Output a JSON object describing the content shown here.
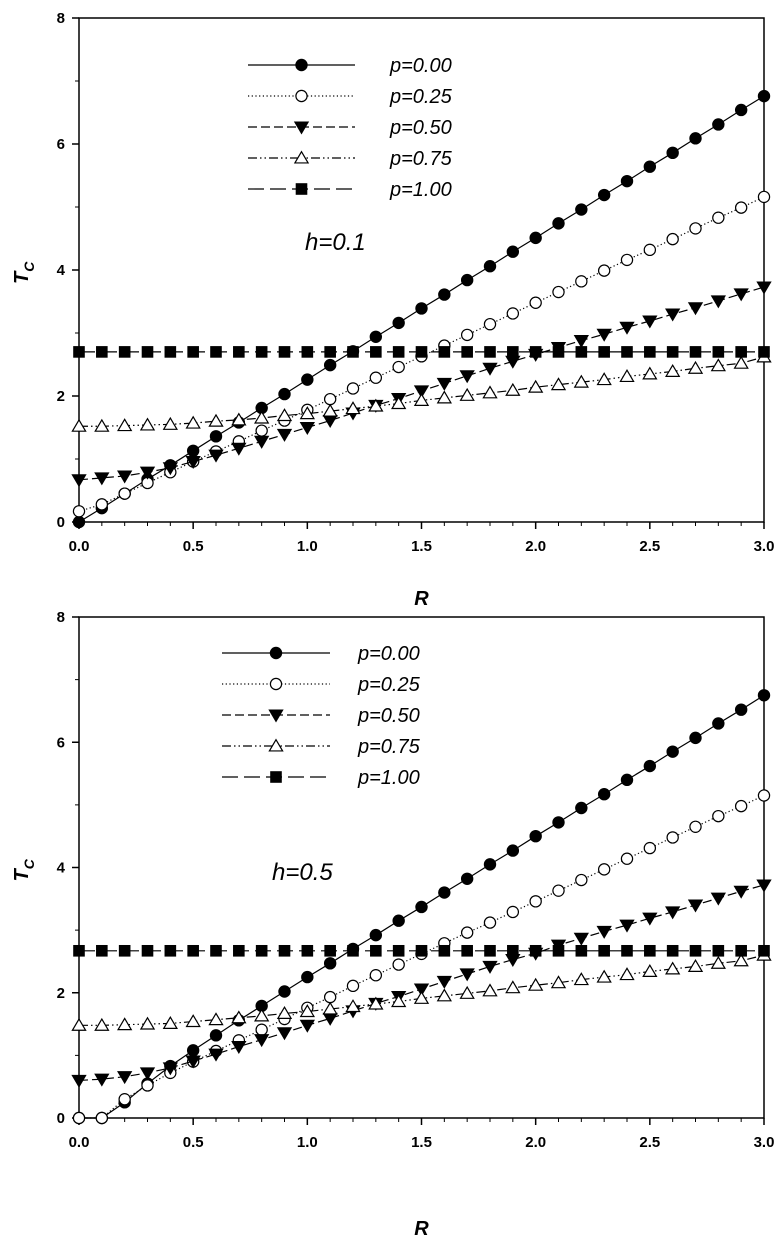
{
  "chart_data": [
    {
      "type": "line",
      "annotation": "h=0.1",
      "xlabel": "R",
      "ylabel_main": "T",
      "ylabel_sub": "C",
      "xlim": [
        0,
        3
      ],
      "ylim": [
        0,
        8
      ],
      "xticks": [
        "0.0",
        "0.5",
        "1.0",
        "1.5",
        "2.0",
        "2.5",
        "3.0"
      ],
      "yticks": [
        "0",
        "2",
        "4",
        "6",
        "8"
      ],
      "grid": false,
      "legend_position": "top-center",
      "x": [
        0.0,
        0.1,
        0.2,
        0.3,
        0.4,
        0.5,
        0.6,
        0.7,
        0.8,
        0.9,
        1.0,
        1.1,
        1.2,
        1.3,
        1.4,
        1.5,
        1.6,
        1.7,
        1.8,
        1.9,
        2.0,
        2.1,
        2.2,
        2.3,
        2.4,
        2.5,
        2.6,
        2.7,
        2.8,
        2.9,
        3.0
      ],
      "series": [
        {
          "name": "p=0.00",
          "marker": "filled-circle",
          "line": "solid",
          "values": [
            0.0,
            0.22,
            0.45,
            0.68,
            0.9,
            1.13,
            1.36,
            1.58,
            1.81,
            2.03,
            2.26,
            2.49,
            2.71,
            2.94,
            3.16,
            3.39,
            3.61,
            3.84,
            4.06,
            4.29,
            4.51,
            4.74,
            4.96,
            5.19,
            5.41,
            5.64,
            5.86,
            6.09,
            6.31,
            6.54,
            6.76
          ]
        },
        {
          "name": "p=0.25",
          "marker": "open-circle",
          "line": "dotted",
          "values": [
            0.17,
            0.28,
            0.45,
            0.62,
            0.79,
            0.96,
            1.12,
            1.28,
            1.45,
            1.61,
            1.78,
            1.95,
            2.12,
            2.29,
            2.46,
            2.63,
            2.8,
            2.97,
            3.14,
            3.31,
            3.48,
            3.65,
            3.82,
            3.99,
            4.16,
            4.32,
            4.49,
            4.66,
            4.83,
            4.99,
            5.16
          ]
        },
        {
          "name": "p=0.50",
          "marker": "filled-triangle-down",
          "line": "dashed",
          "values": [
            0.67,
            0.7,
            0.73,
            0.79,
            0.86,
            0.96,
            1.06,
            1.17,
            1.28,
            1.39,
            1.5,
            1.61,
            1.73,
            1.85,
            1.96,
            2.08,
            2.2,
            2.32,
            2.44,
            2.55,
            2.66,
            2.77,
            2.88,
            2.98,
            3.09,
            3.19,
            3.3,
            3.4,
            3.51,
            3.62,
            3.73
          ]
        },
        {
          "name": "p=0.75",
          "marker": "open-triangle-up",
          "line": "dash-dot-dot",
          "values": [
            1.52,
            1.52,
            1.53,
            1.54,
            1.55,
            1.57,
            1.6,
            1.62,
            1.65,
            1.69,
            1.72,
            1.76,
            1.8,
            1.84,
            1.88,
            1.93,
            1.97,
            2.01,
            2.05,
            2.09,
            2.14,
            2.18,
            2.22,
            2.26,
            2.31,
            2.35,
            2.39,
            2.44,
            2.48,
            2.52,
            2.62
          ]
        },
        {
          "name": "p=1.00",
          "marker": "filled-square",
          "line": "long-dash",
          "values": [
            2.7,
            2.7,
            2.7,
            2.7,
            2.7,
            2.7,
            2.7,
            2.7,
            2.7,
            2.7,
            2.7,
            2.7,
            2.7,
            2.7,
            2.7,
            2.7,
            2.7,
            2.7,
            2.7,
            2.7,
            2.7,
            2.7,
            2.7,
            2.7,
            2.7,
            2.7,
            2.7,
            2.7,
            2.7,
            2.7,
            2.7
          ]
        }
      ]
    },
    {
      "type": "line",
      "annotation": "h=0.5",
      "xlabel": "R",
      "ylabel_main": "T",
      "ylabel_sub": "C",
      "xlim": [
        0,
        3
      ],
      "ylim": [
        0,
        8
      ],
      "xticks": [
        "0.0",
        "0.5",
        "1.0",
        "1.5",
        "2.0",
        "2.5",
        "3.0"
      ],
      "yticks": [
        "0",
        "2",
        "4",
        "6",
        "8"
      ],
      "grid": false,
      "legend_position": "top-left",
      "x": [
        0.0,
        0.1,
        0.2,
        0.3,
        0.4,
        0.5,
        0.6,
        0.7,
        0.8,
        0.9,
        1.0,
        1.1,
        1.2,
        1.3,
        1.4,
        1.5,
        1.6,
        1.7,
        1.8,
        1.9,
        2.0,
        2.1,
        2.2,
        2.3,
        2.4,
        2.5,
        2.6,
        2.7,
        2.8,
        2.9,
        3.0
      ],
      "series": [
        {
          "name": "p=0.00",
          "marker": "filled-circle",
          "line": "solid",
          "values": [
            0.0,
            0.0,
            0.25,
            0.55,
            0.83,
            1.08,
            1.32,
            1.56,
            1.79,
            2.02,
            2.25,
            2.47,
            2.7,
            2.92,
            3.15,
            3.37,
            3.6,
            3.82,
            4.05,
            4.27,
            4.5,
            4.72,
            4.95,
            5.17,
            5.4,
            5.62,
            5.85,
            6.07,
            6.3,
            6.52,
            6.75
          ]
        },
        {
          "name": "p=0.25",
          "marker": "open-circle",
          "line": "dotted",
          "values": [
            0.0,
            0.0,
            0.3,
            0.52,
            0.72,
            0.9,
            1.07,
            1.24,
            1.41,
            1.58,
            1.76,
            1.93,
            2.11,
            2.28,
            2.45,
            2.62,
            2.79,
            2.96,
            3.12,
            3.29,
            3.46,
            3.63,
            3.8,
            3.97,
            4.14,
            4.31,
            4.48,
            4.65,
            4.82,
            4.98,
            5.15
          ]
        },
        {
          "name": "p=0.50",
          "marker": "filled-triangle-down",
          "line": "dashed",
          "values": [
            0.6,
            0.62,
            0.66,
            0.72,
            0.8,
            0.91,
            1.02,
            1.14,
            1.25,
            1.36,
            1.48,
            1.59,
            1.71,
            1.83,
            1.94,
            2.06,
            2.18,
            2.3,
            2.42,
            2.53,
            2.63,
            2.76,
            2.87,
            2.98,
            3.08,
            3.19,
            3.29,
            3.4,
            3.51,
            3.62,
            3.72
          ]
        },
        {
          "name": "p=0.75",
          "marker": "open-triangle-up",
          "line": "dash-dot-dot",
          "values": [
            1.48,
            1.48,
            1.49,
            1.5,
            1.51,
            1.54,
            1.57,
            1.6,
            1.63,
            1.67,
            1.7,
            1.74,
            1.78,
            1.82,
            1.86,
            1.91,
            1.95,
            1.99,
            2.03,
            2.08,
            2.12,
            2.16,
            2.21,
            2.25,
            2.29,
            2.34,
            2.38,
            2.42,
            2.47,
            2.51,
            2.6
          ]
        },
        {
          "name": "p=1.00",
          "marker": "filled-square",
          "line": "long-dash",
          "values": [
            2.67,
            2.67,
            2.67,
            2.67,
            2.67,
            2.67,
            2.67,
            2.67,
            2.67,
            2.67,
            2.67,
            2.67,
            2.67,
            2.67,
            2.67,
            2.67,
            2.67,
            2.67,
            2.67,
            2.67,
            2.67,
            2.67,
            2.67,
            2.67,
            2.67,
            2.67,
            2.67,
            2.67,
            2.67,
            2.67,
            2.67
          ]
        }
      ]
    }
  ]
}
